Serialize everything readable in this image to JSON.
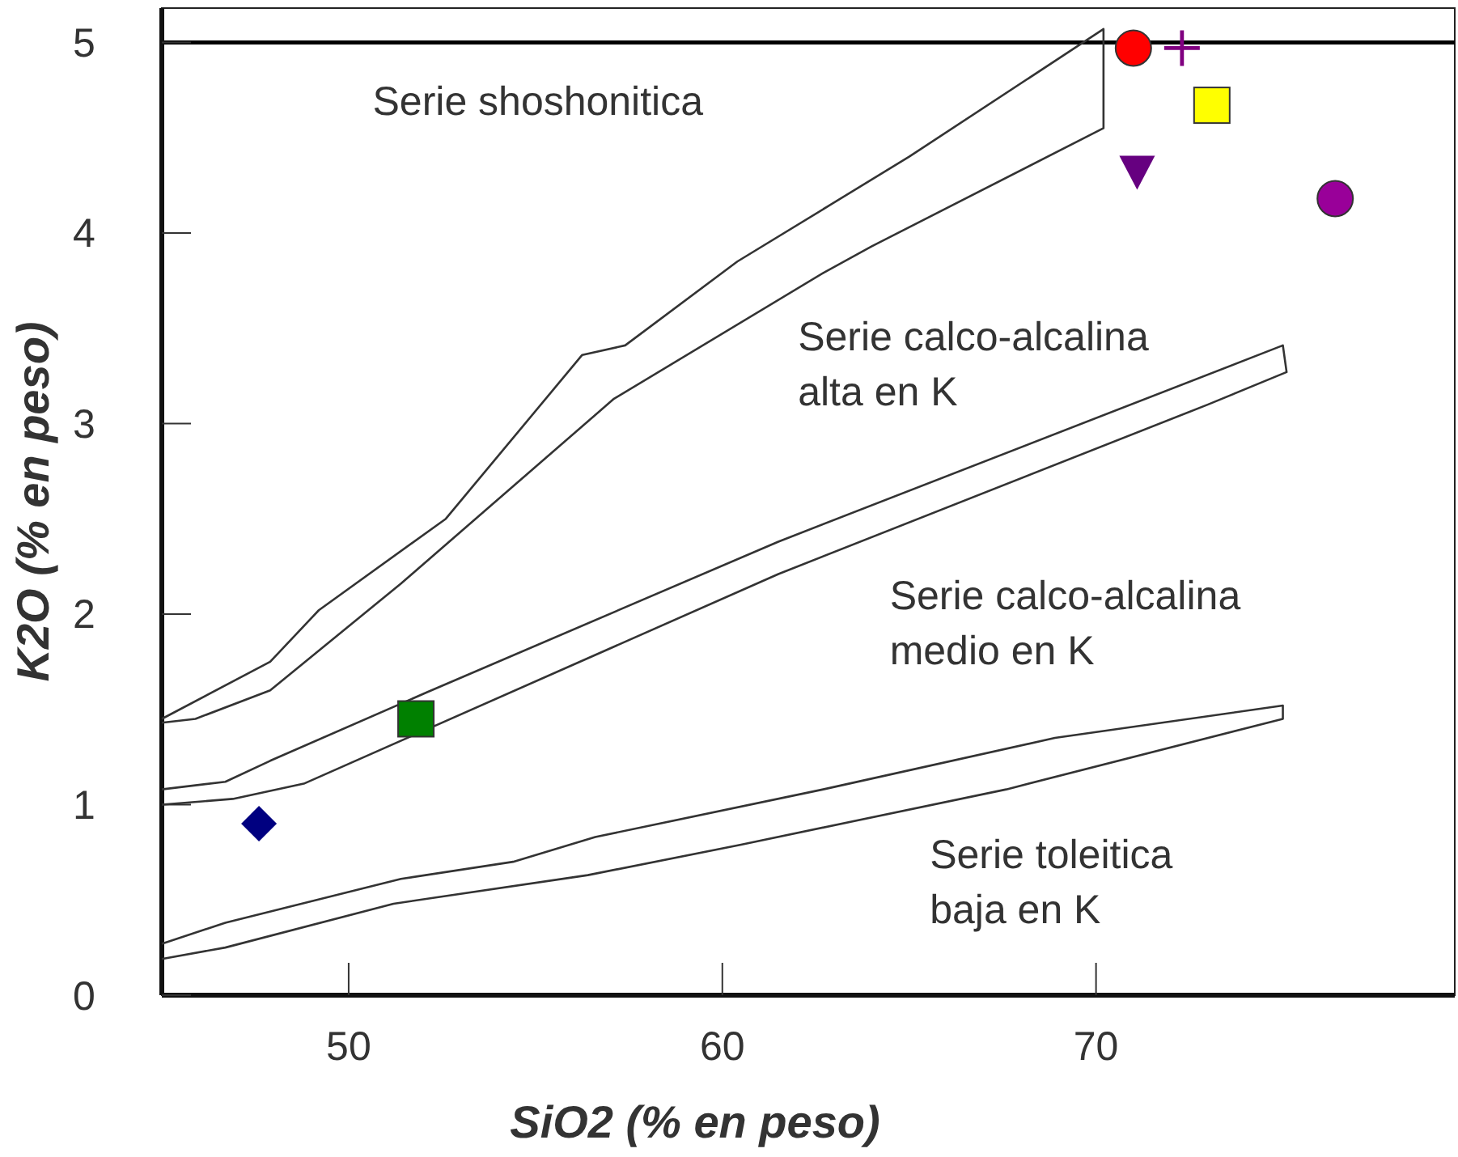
{
  "chart_data": {
    "type": "scatter",
    "xlabel": "SiO2 (% en peso)",
    "ylabel": "K2O (% en peso)",
    "xlim": [
      45,
      79.6
    ],
    "ylim": [
      0,
      5.18
    ],
    "xticks": [
      50,
      60,
      70
    ],
    "yticks": [
      0,
      1,
      2,
      3,
      4,
      5
    ],
    "grid": false,
    "series": [
      {
        "type": "line",
        "color": "#333333",
        "marker": "none",
        "x": [
          45,
          45.9,
          47.9,
          51.4,
          57.1,
          62.7,
          64,
          70.2,
          70.2,
          65,
          60.4,
          57.4,
          56.25,
          52.6,
          49.2,
          47.9,
          45
        ],
        "values": [
          1.43,
          1.45,
          1.6,
          2.16,
          3.13,
          3.79,
          3.93,
          4.55,
          5.07,
          4.4,
          3.85,
          3.41,
          3.36,
          2.5,
          2.02,
          1.75,
          1.45
        ]
      },
      {
        "type": "line",
        "color": "#333333",
        "marker": "none",
        "x": [
          45,
          46.9,
          48.8,
          61.5,
          73.0,
          75.1,
          75.0,
          61.5,
          52.1,
          47.9,
          46.7,
          45
        ],
        "values": [
          1.0,
          1.03,
          1.11,
          2.21,
          3.1,
          3.27,
          3.41,
          2.38,
          1.59,
          1.23,
          1.12,
          1.08
        ]
      },
      {
        "type": "line",
        "color": "#333333",
        "marker": "none",
        "x": [
          45,
          46.7,
          51.2,
          56.4,
          60.5,
          67.6,
          75.0,
          75.0,
          68.9,
          62.7,
          56.6,
          54.4,
          51.4,
          46.7,
          45
        ],
        "values": [
          0.19,
          0.25,
          0.48,
          0.63,
          0.79,
          1.08,
          1.45,
          1.52,
          1.35,
          1.08,
          0.83,
          0.7,
          0.61,
          0.38,
          0.27
        ]
      },
      {
        "color": "#000080",
        "marker": "diamond",
        "x": [
          47.6
        ],
        "values": [
          0.9
        ]
      },
      {
        "color": "#008000",
        "marker": "square",
        "x": [
          51.8
        ],
        "values": [
          1.45
        ]
      },
      {
        "color": "#ff0000",
        "marker": "circle",
        "x": [
          71.0
        ],
        "values": [
          4.97
        ]
      },
      {
        "color": "#800080",
        "marker": "cross",
        "x": [
          72.3
        ],
        "values": [
          4.97
        ]
      },
      {
        "color": "#ffff00",
        "marker": "square",
        "x": [
          73.1
        ],
        "values": [
          4.67
        ]
      },
      {
        "color": "#660080",
        "marker": "triangle",
        "x": [
          71.1
        ],
        "values": [
          4.33
        ]
      },
      {
        "color": "#990099",
        "marker": "circle",
        "x": [
          76.4
        ],
        "values": [
          4.18
        ]
      }
    ],
    "ref_lines": [
      {
        "axis": "y",
        "value": 5,
        "color": "#000000"
      }
    ],
    "annotations": [
      "Serie shoshonitica",
      "Serie calco-alcalina\nalta en K",
      "Serie calco-alcalina\nmedio en K",
      "Serie toleitica\nbaja en K"
    ]
  }
}
